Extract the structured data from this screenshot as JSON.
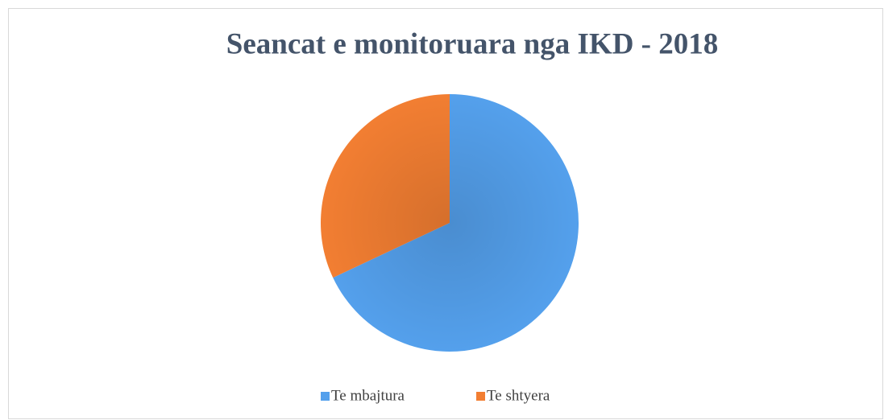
{
  "chart_data": {
    "type": "pie",
    "title": "Seancat e monitoruara nga IKD - 2018",
    "categories": [
      "Te mbajtura",
      "Te shtyera"
    ],
    "values": [
      68,
      32
    ],
    "colors": [
      "#54a0ec",
      "#f27e32"
    ],
    "legend": "bottom"
  }
}
